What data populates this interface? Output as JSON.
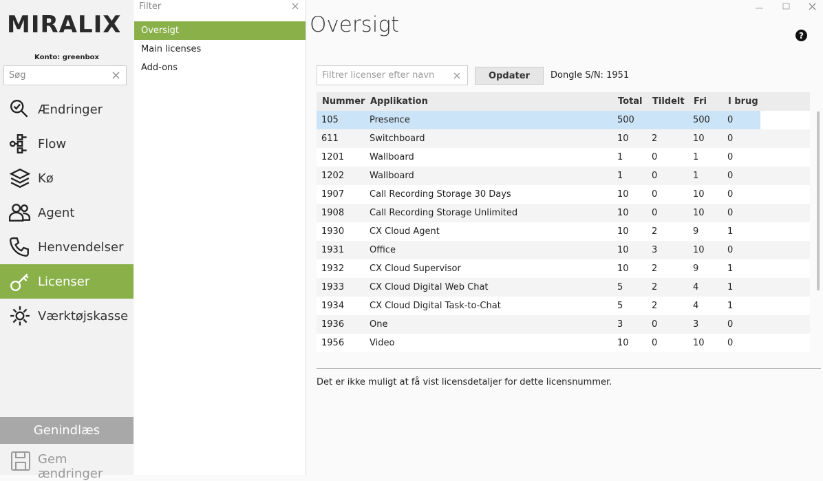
{
  "logo": "MIRALIX",
  "account": "Konto: greenbox",
  "search_placeholder": "Søg",
  "nav": [
    {
      "label": "Ændringer",
      "active": false
    },
    {
      "label": "Flow",
      "active": false
    },
    {
      "label": "Kø",
      "active": false
    },
    {
      "label": "Agent",
      "active": false
    },
    {
      "label": "Henvendelser",
      "active": false
    },
    {
      "label": "Licenser",
      "active": true
    },
    {
      "label": "Værktøjskasse",
      "active": false
    }
  ],
  "reload": "Genindlæs",
  "save": "Gem ændringer",
  "filter_placeholder": "Filter",
  "tree": [
    {
      "label": "Oversigt",
      "active": true
    },
    {
      "label": "Main licenses",
      "active": false
    },
    {
      "label": "Add-ons",
      "active": false
    }
  ],
  "page_title": "Oversigt",
  "help_icon": "?",
  "license_filter_placeholder": "Filtrer licenser efter navn",
  "update_button": "Opdater",
  "dongle": "Dongle S/N: 1951",
  "table": {
    "columns": [
      "Nummer",
      "Applikation",
      "Total",
      "Tildelt",
      "Fri",
      "I brug"
    ],
    "selected_row": 0,
    "rows": [
      [
        105,
        "Presence",
        500,
        null,
        500,
        0
      ],
      [
        611,
        "Switchboard",
        10,
        2,
        10,
        0
      ],
      [
        1201,
        "Wallboard",
        1,
        0,
        1,
        0
      ],
      [
        1202,
        "Wallboard",
        1,
        0,
        1,
        0
      ],
      [
        1907,
        "Call Recording Storage 30 Days",
        10,
        0,
        10,
        0
      ],
      [
        1908,
        "Call Recording Storage Unlimited",
        10,
        0,
        10,
        0
      ],
      [
        1930,
        "CX Cloud Agent",
        10,
        2,
        9,
        1
      ],
      [
        1931,
        "Office",
        10,
        3,
        10,
        0
      ],
      [
        1932,
        "CX Cloud Supervisor",
        10,
        2,
        9,
        1
      ],
      [
        1933,
        "CX Cloud Digital Web Chat",
        5,
        2,
        4,
        1
      ],
      [
        1934,
        "CX Cloud Digital Task-to-Chat",
        5,
        2,
        4,
        1
      ],
      [
        1936,
        "One",
        3,
        0,
        3,
        0
      ],
      [
        1956,
        "Video",
        10,
        0,
        10,
        0
      ]
    ]
  },
  "status_message": "Det er ikke muligt at få vist licensdetaljer for dette licensnummer."
}
